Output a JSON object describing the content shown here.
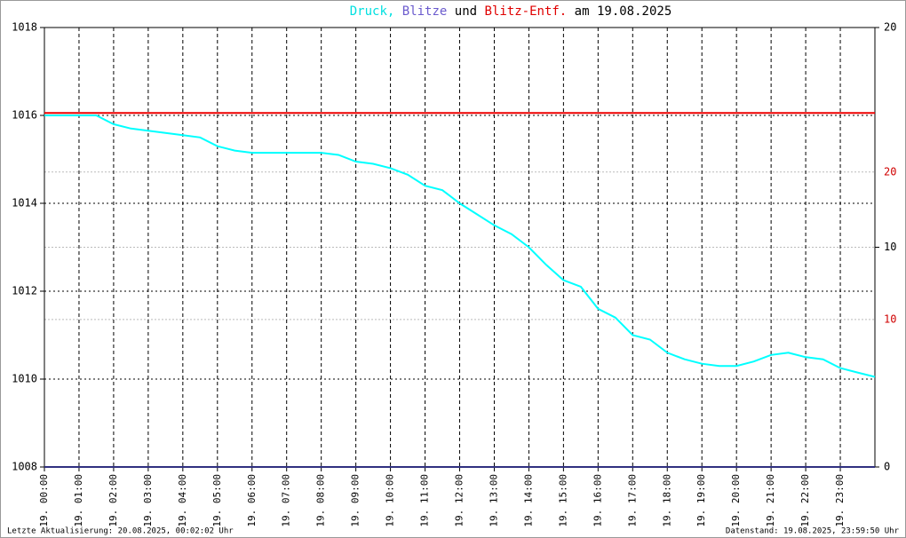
{
  "chart_data": {
    "type": "line",
    "title_parts": [
      {
        "text": "Druck,",
        "color": "#00e0e0"
      },
      {
        "text": "Blitze",
        "color": "#6a5acd"
      },
      {
        "text": "und",
        "color": "#000000"
      },
      {
        "text": "Blitz-Entf.",
        "color": "#e00000"
      },
      {
        "text": "am 19.08.2025",
        "color": "#000000"
      }
    ],
    "x": [
      0,
      0.5,
      1,
      1.5,
      2,
      2.5,
      3,
      3.5,
      4,
      4.5,
      5,
      5.5,
      6,
      6.5,
      7,
      7.5,
      8,
      8.5,
      9,
      9.5,
      10,
      10.5,
      11,
      11.5,
      12,
      12.5,
      13,
      13.5,
      14,
      14.5,
      15,
      15.5,
      16,
      16.5,
      17,
      17.5,
      18,
      18.5,
      19,
      19.5,
      20,
      20.5,
      21,
      21.5,
      22,
      22.5,
      23,
      23.5,
      24
    ],
    "xlim": [
      0,
      24
    ],
    "xticks": [
      {
        "value": 0,
        "label": "19. 00:00"
      },
      {
        "value": 1,
        "label": "19. 01:00"
      },
      {
        "value": 2,
        "label": "19. 02:00"
      },
      {
        "value": 3,
        "label": "19. 03:00"
      },
      {
        "value": 4,
        "label": "19. 04:00"
      },
      {
        "value": 5,
        "label": "19. 05:00"
      },
      {
        "value": 6,
        "label": "19. 06:00"
      },
      {
        "value": 7,
        "label": "19. 07:00"
      },
      {
        "value": 8,
        "label": "19. 08:00"
      },
      {
        "value": 9,
        "label": "19. 09:00"
      },
      {
        "value": 10,
        "label": "19. 10:00"
      },
      {
        "value": 11,
        "label": "19. 11:00"
      },
      {
        "value": 12,
        "label": "19. 12:00"
      },
      {
        "value": 13,
        "label": "19. 13:00"
      },
      {
        "value": 14,
        "label": "19. 14:00"
      },
      {
        "value": 15,
        "label": "19. 15:00"
      },
      {
        "value": 16,
        "label": "19. 16:00"
      },
      {
        "value": 17,
        "label": "19. 17:00"
      },
      {
        "value": 18,
        "label": "19. 18:00"
      },
      {
        "value": 19,
        "label": "19. 19:00"
      },
      {
        "value": 20,
        "label": "19. 20:00"
      },
      {
        "value": 21,
        "label": "19. 21:00"
      },
      {
        "value": 22,
        "label": "19. 22:00"
      },
      {
        "value": 23,
        "label": "19. 23:00"
      }
    ],
    "ylim": [
      1008,
      1018
    ],
    "yticks": [
      1008,
      1010,
      1012,
      1014,
      1016,
      1018
    ],
    "y2lim": [
      0,
      20
    ],
    "y2ticks": [
      0,
      10,
      20
    ],
    "y3lim": [
      0,
      29.8
    ],
    "y3ticks": [
      10,
      20
    ],
    "grid": true,
    "series": [
      {
        "color": "#00ffff",
        "values": [
          1016.0,
          1016.0,
          1016.0,
          1016.0,
          1015.8,
          1015.7,
          1015.65,
          1015.6,
          1015.55,
          1015.5,
          1015.3,
          1015.2,
          1015.15,
          1015.15,
          1015.15,
          1015.15,
          1015.15,
          1015.1,
          1014.95,
          1014.9,
          1014.8,
          1014.65,
          1014.4,
          1014.3,
          1014.0,
          1013.75,
          1013.5,
          1013.3,
          1013.0,
          1012.6,
          1012.25,
          1012.1,
          1011.6,
          1011.4,
          1011.0,
          1010.9,
          1010.6,
          1010.45,
          1010.35,
          1010.3,
          1010.3,
          1010.4,
          1010.55,
          1010.6,
          1010.5,
          1010.45,
          1010.25,
          1010.15,
          1010.05
        ]
      },
      {
        "color": "#303080",
        "axis": "y2",
        "values": [
          0,
          0,
          0,
          0,
          0,
          0,
          0,
          0,
          0,
          0,
          0,
          0,
          0,
          0,
          0,
          0,
          0,
          0,
          0,
          0,
          0,
          0,
          0,
          0,
          0,
          0,
          0,
          0,
          0,
          0,
          0,
          0,
          0,
          0,
          0,
          0,
          0,
          0,
          0,
          0,
          0,
          0,
          0,
          0,
          0,
          0,
          0,
          0,
          0
        ]
      },
      {
        "color": "#ee0000",
        "axis": "y3",
        "values": [
          24,
          24,
          24,
          24,
          24,
          24,
          24,
          24,
          24,
          24,
          24,
          24,
          24,
          24,
          24,
          24,
          24,
          24,
          24,
          24,
          24,
          24,
          24,
          24,
          24,
          24,
          24,
          24,
          24,
          24,
          24,
          24,
          24,
          24,
          24,
          24,
          24,
          24,
          24,
          24,
          24,
          24,
          24,
          24,
          24,
          24,
          24,
          24,
          24
        ]
      }
    ],
    "footer_left": "Letzte Aktualisierung: 20.08.2025, 00:02:02 Uhr",
    "footer_right": "Datenstand: 19.08.2025, 23:59:50 Uhr"
  }
}
